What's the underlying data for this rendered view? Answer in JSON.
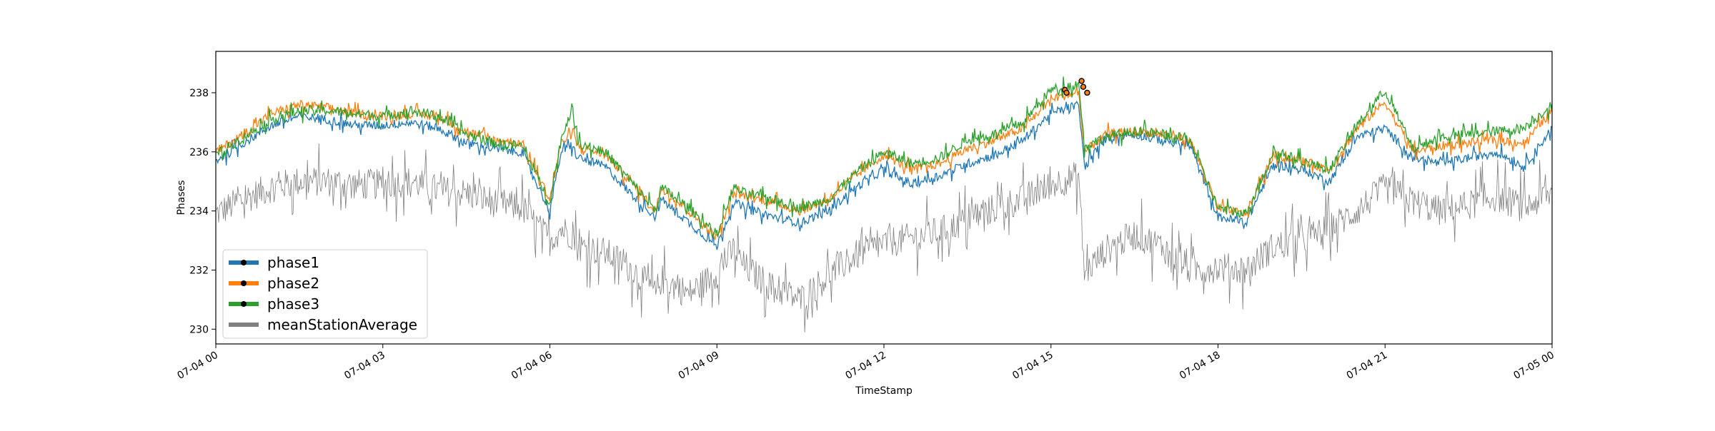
{
  "chart_data": {
    "type": "line",
    "xlabel": "TimeStamp",
    "ylabel": "Phases",
    "x_range": [
      "2019-07-04 00:00",
      "2019-07-05 00:00"
    ],
    "ylim": [
      229.5,
      239.4
    ],
    "grid": false,
    "legend_position": "lower-left",
    "x_ticks": [
      {
        "hour": 0,
        "label": "07-04 00"
      },
      {
        "hour": 3,
        "label": "07-04 03"
      },
      {
        "hour": 6,
        "label": "07-04 06"
      },
      {
        "hour": 9,
        "label": "07-04 09"
      },
      {
        "hour": 12,
        "label": "07-04 12"
      },
      {
        "hour": 15,
        "label": "07-04 15"
      },
      {
        "hour": 18,
        "label": "07-04 18"
      },
      {
        "hour": 21,
        "label": "07-04 21"
      },
      {
        "hour": 24,
        "label": "07-05 00"
      }
    ],
    "y_ticks": [
      230,
      232,
      234,
      236,
      238
    ],
    "x": [
      0,
      0.5,
      1,
      1.5,
      2,
      2.5,
      3,
      3.5,
      4,
      4.5,
      5,
      5.5,
      6,
      6.2,
      6.4,
      6.5,
      7,
      7.5,
      7.9,
      8,
      8.5,
      9,
      9.3,
      9.5,
      10,
      10.5,
      11,
      11.5,
      12,
      12.5,
      13,
      13.5,
      14,
      14.5,
      15,
      15.5,
      15.6,
      16,
      16.5,
      17,
      17.5,
      18,
      18.5,
      19,
      19.5,
      20,
      20.5,
      21,
      21.5,
      22,
      22.5,
      23,
      23.5,
      24
    ],
    "series": [
      {
        "name": "phase1",
        "color": "#1f77b4",
        "values": [
          235.7,
          236.3,
          236.9,
          237.2,
          237.1,
          236.9,
          236.9,
          237.0,
          236.8,
          236.3,
          236.1,
          236.0,
          234.0,
          236.0,
          236.2,
          235.8,
          235.5,
          234.5,
          233.8,
          234.4,
          233.6,
          232.8,
          234.3,
          234.1,
          233.8,
          233.6,
          234.0,
          234.8,
          235.4,
          234.9,
          235.2,
          235.6,
          235.9,
          236.4,
          237.3,
          237.6,
          235.5,
          236.5,
          236.6,
          236.4,
          236.2,
          233.8,
          233.6,
          235.6,
          235.4,
          235.0,
          236.5,
          236.8,
          235.8,
          235.6,
          235.8,
          236.0,
          235.5,
          236.8
        ]
      },
      {
        "name": "phase2",
        "color": "#ff7f0e",
        "values": [
          236.0,
          236.6,
          237.3,
          237.6,
          237.5,
          237.3,
          237.2,
          237.3,
          237.2,
          236.7,
          236.4,
          236.3,
          234.4,
          236.3,
          236.6,
          236.2,
          235.9,
          234.9,
          234.0,
          234.8,
          234.0,
          233.1,
          234.6,
          234.5,
          234.3,
          234.0,
          234.4,
          235.2,
          235.9,
          235.4,
          235.6,
          236.1,
          236.4,
          236.8,
          237.8,
          238.0,
          236.0,
          236.6,
          236.7,
          236.6,
          236.4,
          234.1,
          233.9,
          235.9,
          235.7,
          235.4,
          236.8,
          237.7,
          236.0,
          236.2,
          236.3,
          236.4,
          236.3,
          237.4
        ]
      },
      {
        "name": "phase3",
        "color": "#2ca02c",
        "values": [
          235.9,
          236.5,
          237.1,
          237.4,
          237.4,
          237.3,
          237.2,
          237.4,
          237.2,
          236.6,
          236.3,
          236.2,
          234.3,
          236.4,
          237.5,
          236.3,
          236.0,
          234.9,
          234.0,
          234.8,
          234.1,
          233.2,
          234.8,
          234.6,
          234.4,
          234.1,
          234.4,
          235.3,
          236.0,
          235.6,
          235.8,
          236.4,
          236.6,
          237.0,
          238.1,
          238.3,
          236.2,
          236.5,
          236.7,
          236.6,
          236.4,
          234.1,
          233.9,
          236.0,
          235.7,
          235.4,
          236.9,
          238.1,
          236.1,
          236.5,
          236.6,
          236.7,
          236.8,
          237.6
        ]
      },
      {
        "name": "meanStationAverage",
        "color": "#808080",
        "values": [
          233.9,
          234.4,
          234.8,
          235.0,
          235.0,
          234.9,
          234.9,
          235.0,
          234.7,
          234.6,
          234.3,
          234.1,
          233.0,
          233.4,
          233.2,
          232.8,
          232.6,
          232.0,
          231.2,
          231.7,
          231.2,
          231.9,
          232.7,
          232.1,
          231.4,
          231.0,
          231.8,
          232.5,
          232.9,
          233.1,
          233.3,
          233.7,
          234.1,
          234.4,
          234.9,
          235.2,
          231.9,
          232.7,
          233.2,
          232.8,
          232.0,
          232.1,
          232.0,
          232.8,
          233.0,
          233.4,
          234.0,
          234.8,
          234.3,
          234.0,
          234.2,
          234.5,
          234.1,
          234.6
        ]
      }
    ],
    "highlight_markers": {
      "series": "phase2",
      "points": [
        {
          "x": 15.25,
          "y": 238.1
        },
        {
          "x": 15.28,
          "y": 238.0
        },
        {
          "x": 15.55,
          "y": 238.4
        },
        {
          "x": 15.58,
          "y": 238.2
        },
        {
          "x": 15.65,
          "y": 238.0
        }
      ]
    },
    "legend": [
      {
        "label": "phase1",
        "color": "#1f77b4",
        "marker": true
      },
      {
        "label": "phase2",
        "color": "#ff7f0e",
        "marker": true
      },
      {
        "label": "phase3",
        "color": "#2ca02c",
        "marker": true
      },
      {
        "label": "meanStationAverage",
        "color": "#808080",
        "marker": false
      }
    ]
  }
}
